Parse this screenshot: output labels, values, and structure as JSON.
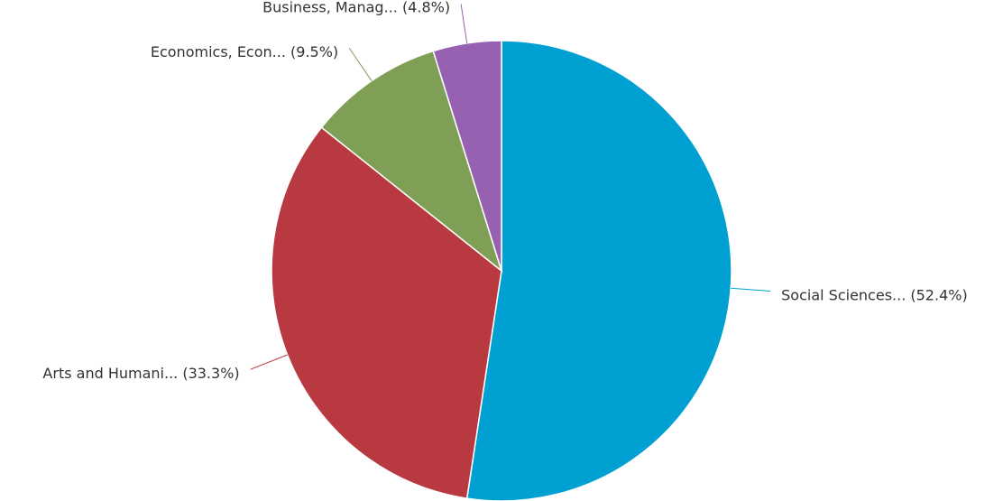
{
  "chart_data": {
    "type": "pie",
    "categories": [
      "Social Sciences...",
      "Arts and Humani...",
      "Economics, Econ...",
      "Business, Manag..."
    ],
    "values": [
      52.4,
      33.3,
      9.5,
      4.8
    ],
    "value_labels": [
      "(52.4%)",
      "(33.3%)",
      "(9.5%)",
      "(4.8%)"
    ],
    "colors": [
      "#00a0d2",
      "#b83a40",
      "#7e9f55",
      "#9661b0"
    ]
  }
}
